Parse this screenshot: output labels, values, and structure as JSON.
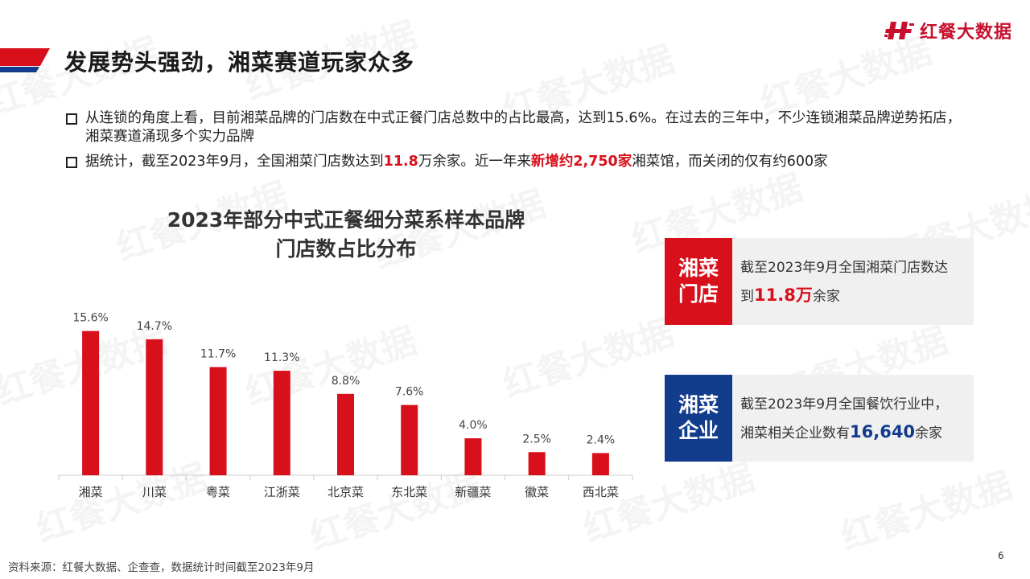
{
  "brand": {
    "logo_text": "红餐大数据",
    "accent": "#d8101c",
    "secondary": "#123c8c"
  },
  "header": {
    "title": "发展势头强劲，湘菜赛道玩家众多"
  },
  "bullets": {
    "b1": "从连锁的角度上看，目前湘菜品牌的门店数在中式正餐门店总数中的占比最高，达到15.6%。在过去的三年中，不少连锁湘菜品牌逆势拓店，湘菜赛道涌现多个实力品牌",
    "b2_pre": "据统计，截至2023年9月，全国湘菜门店数达到",
    "b2_num": "11.8",
    "b2_mid": "万余家。近一年来",
    "b2_hl": "新增约2,750家",
    "b2_post": "湘菜馆，而关闭的仅有约600家"
  },
  "chart_data": {
    "type": "bar",
    "title_line1": "2023年部分中式正餐细分菜系样本品牌",
    "title_line2": "门店数占比分布",
    "categories": [
      "湘菜",
      "川菜",
      "粤菜",
      "江浙菜",
      "北京菜",
      "东北菜",
      "新疆菜",
      "徽菜",
      "西北菜"
    ],
    "values": [
      15.6,
      14.7,
      11.7,
      11.3,
      8.8,
      7.6,
      4.0,
      2.5,
      2.4
    ],
    "value_labels": [
      "15.6%",
      "14.7%",
      "11.7%",
      "11.3%",
      "8.8%",
      "7.6%",
      "4.0%",
      "2.5%",
      "2.4%"
    ],
    "ylim": [
      0,
      16
    ],
    "bar_color": "#d8101c"
  },
  "cards": {
    "c1": {
      "tag1": "湘菜",
      "tag2": "门店",
      "line1": "截至2023年9月全国湘菜门店数达",
      "line2_pre": "到",
      "num": "11.8万",
      "line2_post": "余家"
    },
    "c2": {
      "tag1": "湘菜",
      "tag2": "企业",
      "line1": "截至2023年9月全国餐饮行业中，",
      "line2_pre": "湘菜相关企业数有",
      "num": "16,640",
      "line2_post": "余家"
    }
  },
  "footer": {
    "source": "资料来源：红餐大数据、企查查，数据统计时间截至2023年9月",
    "page_number": "6"
  }
}
